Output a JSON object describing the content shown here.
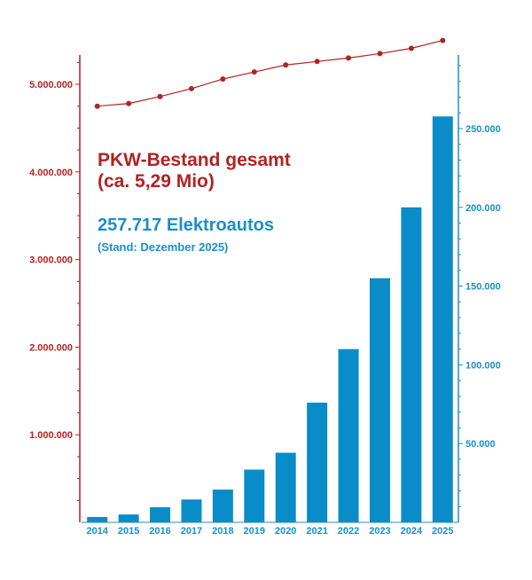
{
  "colors": {
    "total_line": "#b22222",
    "ev_bars": "#0a8cc8",
    "left_axis": "#b22222",
    "right_axis": "#1a8fc8"
  },
  "annotations": {
    "total_title": "PKW-Bestand gesamt",
    "total_value": "(ca. 5,29 Mio)",
    "ev_title": "257.717 Elektroautos",
    "ev_note": "(Stand: Dezember 2025)"
  },
  "chart_data": {
    "type": "bar",
    "categories": [
      "2014",
      "2015",
      "2016",
      "2017",
      "2018",
      "2019",
      "2020",
      "2021",
      "2022",
      "2023",
      "2024",
      "2025"
    ],
    "series": [
      {
        "axis": "left",
        "kind": "line",
        "values": [
          4750000,
          4780000,
          4860000,
          4950000,
          5060000,
          5140000,
          5220000,
          5260000,
          5300000,
          5350000,
          5410000,
          5500000
        ]
      },
      {
        "axis": "right",
        "kind": "bar",
        "values": [
          3400,
          5000,
          9600,
          14500,
          20800,
          33500,
          44200,
          76000,
          110000,
          155000,
          200000,
          257717
        ]
      }
    ],
    "y_left": {
      "ylim": [
        0,
        5500000
      ],
      "ticks": [
        1000000,
        2000000,
        3000000,
        4000000,
        5000000
      ],
      "tick_labels": [
        "1.000.000",
        "2.000.000",
        "3.000.000",
        "4.000.000",
        "5.000.000"
      ]
    },
    "y_right": {
      "ylim": [
        0,
        295000
      ],
      "ticks": [
        50000,
        100000,
        150000,
        200000,
        250000
      ],
      "tick_labels": [
        "50.000",
        "100.000",
        "150.000",
        "200.000",
        "250.000"
      ]
    },
    "grid": false
  }
}
